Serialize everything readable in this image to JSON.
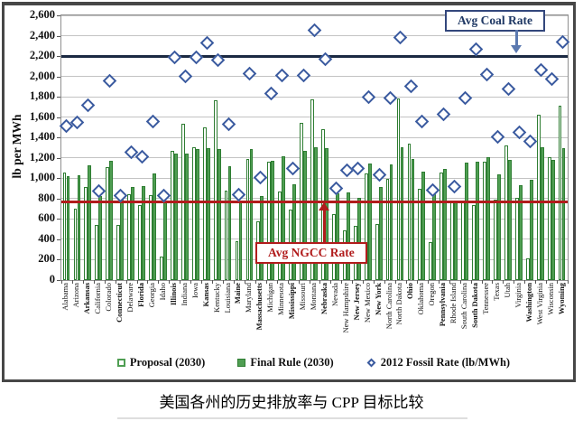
{
  "caption": "美国各州的历史排放率与 CPP 目标比较",
  "colors": {
    "bar_green": "#4f9e52",
    "bar_border": "#2e7d32",
    "diamond_blue": "#3a5a9f",
    "coal_line_navy": "#1b2942",
    "ngcc_line_red": "#b11c1c",
    "annotation_navy": "#1f3864",
    "arrow_steel_blue": "#5b79b0"
  },
  "chart_data": {
    "type": "bar",
    "title": "美国各州的历史排放率与 CPP 目标比较",
    "xlabel": "",
    "ylabel": "lb per MWh",
    "ylim": [
      0,
      2600
    ],
    "grid": true,
    "legend_position": "bottom",
    "ytick_labels": [
      "0",
      "200",
      "400",
      "600",
      "800",
      "1,000",
      "1,200",
      "1,400",
      "1,600",
      "1,800",
      "2,000",
      "2,200",
      "2,400",
      "2,600"
    ],
    "categories": [
      "Alabama",
      "Arizona",
      "Arkansas",
      "California",
      "Colorado",
      "Connecticut",
      "Delaware",
      "Florida",
      "Georgia",
      "Idaho",
      "Illinois",
      "Indiana",
      "Iowa",
      "Kansas",
      "Kentucky",
      "Louisiana",
      "Maine",
      "Maryland",
      "Massachusetts",
      "Michigan",
      "Minnesota",
      "Mississippi",
      "Missouri",
      "Montana",
      "Nebraska",
      "Nevada",
      "New Hampshire",
      "New Jersey",
      "New Mexico",
      "New York",
      "North Carolina",
      "North Dakota",
      "Ohio",
      "Oklahoma",
      "Oregon",
      "Pennsylvania",
      "Rhode Island",
      "South Carolina",
      "South Dakota",
      "Tennessee",
      "Texas",
      "Utah",
      "Virginia",
      "Washington",
      "West Virginia",
      "Wisconsin",
      "Wyoming"
    ],
    "bold_categories": [
      "Arkansas",
      "Connecticut",
      "Florida",
      "Illinois",
      "Kansas",
      "Maine",
      "Massachusetts",
      "Mississippi",
      "Nebraska",
      "New Jersey",
      "New York",
      "Ohio",
      "Pennsylvania",
      "South Dakota",
      "Washington",
      "Wyoming"
    ],
    "series": [
      {
        "name": "Proposal (2030)",
        "type": "bar",
        "style": "hollow",
        "values": [
          1059,
          702,
          910,
          537,
          1108,
          540,
          841,
          740,
          834,
          228,
          1271,
          1531,
          1301,
          1499,
          1763,
          883,
          378,
          1187,
          576,
          1161,
          873,
          692,
          1544,
          1771,
          1479,
          647,
          486,
          531,
          1048,
          549,
          992,
          1783,
          1338,
          895,
          372,
          1052,
          782,
          772,
          741,
          1163,
          791,
          1322,
          810,
          215,
          1620,
          1203,
          1714
        ]
      },
      {
        "name": "Final Rule (2030)",
        "type": "bar",
        "style": "solid",
        "values": [
          1018,
          1031,
          1130,
          828,
          1174,
          786,
          916,
          919,
          1049,
          771,
          1245,
          1242,
          1283,
          1293,
          1286,
          1121,
          779,
          1287,
          824,
          1169,
          1213,
          945,
          1272,
          1305,
          1296,
          855,
          858,
          812,
          1146,
          918,
          1136,
          1305,
          1190,
          1068,
          871,
          1095,
          771,
          1156,
          1167,
          1211,
          1042,
          1179,
          934,
          983,
          1305,
          1176,
          1299
        ]
      },
      {
        "name": "2012 Fossil Rate (lb/MWh)",
        "type": "scatter",
        "marker": "diamond",
        "values": [
          1515,
          1550,
          1720,
          870,
          1960,
          830,
          1255,
          1210,
          1560,
          830,
          2190,
          2005,
          2190,
          2330,
          2165,
          1530,
          835,
          2030,
          1005,
          1830,
          2010,
          1095,
          2010,
          2450,
          2170,
          900,
          1080,
          1095,
          1795,
          1035,
          1785,
          2380,
          1905,
          1560,
          880,
          1630,
          915,
          1790,
          2270,
          2020,
          1410,
          1875,
          1455,
          1365,
          2060,
          1975,
          2340
        ]
      }
    ],
    "reference_lines": [
      {
        "label": "Avg Coal Rate",
        "value": 2200
      },
      {
        "label": "Avg NGCC Rate",
        "value": 765
      }
    ]
  }
}
